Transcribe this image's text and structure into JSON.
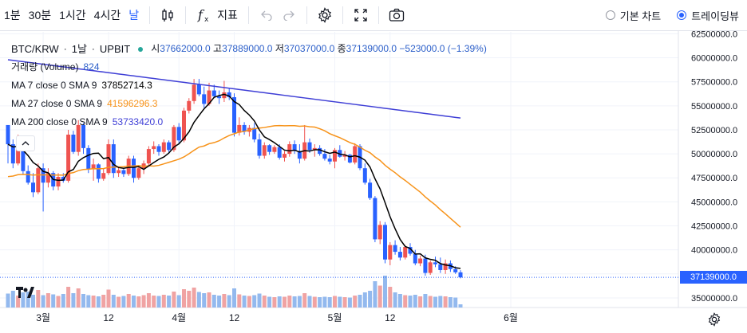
{
  "toolbar": {
    "intervals": [
      "1분",
      "30분",
      "1시간",
      "4시간",
      "날"
    ],
    "active_interval": "날",
    "indicator_label": "지표",
    "chart_type_basic": "기본 차트",
    "chart_type_tv": "트레이딩뷰",
    "selected_chart_type": "트레이딩뷰"
  },
  "legend": {
    "symbol": "BTC/KRW",
    "interval": "1날",
    "exchange": "UPBIT",
    "open_label": "시",
    "open": "37662000.0",
    "high_label": "고",
    "high": "37889000.0",
    "low_label": "저",
    "low": "37037000.0",
    "close_label": "종",
    "close": "37139000.0",
    "change": "−523000.0 (−1.39%)",
    "volume_label": "거래량 (Volume)",
    "volume_value": "824",
    "ma7_label": "MA 7 close 0 SMA 9",
    "ma7_value": "37852714.3",
    "ma27_label": "MA 27 close 0 SMA 9",
    "ma27_value": "41596296.3",
    "ma200_label": "MA 200 close 0 SMA 9",
    "ma200_value": "53733420.0"
  },
  "colors": {
    "up": "#ef5350",
    "down": "#2962ff",
    "ma7": "#000000",
    "ma27": "#f7931a",
    "ma200": "#3f3fd6",
    "vol_up": "#f0a3a3",
    "vol_down": "#93b9ee",
    "accent": "#2962ff"
  },
  "price_tag": "37139000.0",
  "chart_data": {
    "type": "candlestick",
    "y_ticks": [
      "62500000.0",
      "60000000.0",
      "57500000.0",
      "55000000.0",
      "52500000.0",
      "50000000.0",
      "47500000.0",
      "45000000.0",
      "42500000.0",
      "40000000.0",
      "37500000.0",
      "35000000.0"
    ],
    "y_tick_values": [
      62500000,
      60000000,
      57500000,
      55000000,
      52500000,
      50000000,
      47500000,
      45000000,
      42500000,
      40000000,
      37500000,
      35000000
    ],
    "x_ticks": [
      "3월",
      "12",
      "4월",
      "12",
      "5월",
      "12",
      "6월"
    ],
    "x_tick_days": [
      7,
      20,
      34,
      45,
      65,
      76,
      100
    ],
    "ylim": [
      34000000,
      62700000
    ],
    "days": [
      [
        53.0,
        53.0,
        49.0,
        51.0
      ],
      [
        51.0,
        51.5,
        48.5,
        49.0
      ],
      [
        49.0,
        52.0,
        48.8,
        51.5
      ],
      [
        51.5,
        51.6,
        47.8,
        48.2
      ],
      [
        48.2,
        48.8,
        46.8,
        47.0
      ],
      [
        47.0,
        48.0,
        45.5,
        46.0
      ],
      [
        46.0,
        49.0,
        45.8,
        48.5
      ],
      [
        48.5,
        49.0,
        44.0,
        47.0
      ],
      [
        47.0,
        48.5,
        46.5,
        48.0
      ],
      [
        48.0,
        48.2,
        46.2,
        46.6
      ],
      [
        46.6,
        48.0,
        46.2,
        47.6
      ],
      [
        47.6,
        48.0,
        47.0,
        47.2
      ],
      [
        47.2,
        52.5,
        47.0,
        52.0
      ],
      [
        52.0,
        52.4,
        50.0,
        50.2
      ],
      [
        50.2,
        53.5,
        49.8,
        53.0
      ],
      [
        53.0,
        53.2,
        50.0,
        50.6
      ],
      [
        50.6,
        50.9,
        48.0,
        48.4
      ],
      [
        48.4,
        49.5,
        47.2,
        48.9
      ],
      [
        48.9,
        49.0,
        47.0,
        47.4
      ],
      [
        47.4,
        48.5,
        47.2,
        48.0
      ],
      [
        48.0,
        51.5,
        47.8,
        51.0
      ],
      [
        51.0,
        51.5,
        47.5,
        48.0
      ],
      [
        48.0,
        48.6,
        47.6,
        48.3
      ],
      [
        48.3,
        48.5,
        47.6,
        47.9
      ],
      [
        47.9,
        49.8,
        47.7,
        49.5
      ],
      [
        49.5,
        49.8,
        47.0,
        47.5
      ],
      [
        47.5,
        48.8,
        47.3,
        48.5
      ],
      [
        48.5,
        49.3,
        47.9,
        49.0
      ],
      [
        49.0,
        50.8,
        48.8,
        50.5
      ],
      [
        50.5,
        51.3,
        50.0,
        50.8
      ],
      [
        50.8,
        51.0,
        49.8,
        50.2
      ],
      [
        50.2,
        51.5,
        50.0,
        51.2
      ],
      [
        51.2,
        51.4,
        50.1,
        50.4
      ],
      [
        50.4,
        53.0,
        50.2,
        52.8
      ],
      [
        52.8,
        53.2,
        51.0,
        51.4
      ],
      [
        51.4,
        54.8,
        51.2,
        54.5
      ],
      [
        54.5,
        55.8,
        54.2,
        55.5
      ],
      [
        55.5,
        57.8,
        55.2,
        57.2
      ],
      [
        57.2,
        57.8,
        56.0,
        56.2
      ],
      [
        56.2,
        57.0,
        54.8,
        55.2
      ],
      [
        55.2,
        57.4,
        55.0,
        56.6
      ],
      [
        56.6,
        57.2,
        55.8,
        56.0
      ],
      [
        56.0,
        56.6,
        55.2,
        55.8
      ],
      [
        55.8,
        57.6,
        55.4,
        56.4
      ],
      [
        56.4,
        56.8,
        55.6,
        55.9
      ],
      [
        55.9,
        56.3,
        51.8,
        52.2
      ],
      [
        52.2,
        53.8,
        51.9,
        53.0
      ],
      [
        53.0,
        53.3,
        52.0,
        52.3
      ],
      [
        52.3,
        53.0,
        51.8,
        52.7
      ],
      [
        52.7,
        53.2,
        51.2,
        51.5
      ],
      [
        51.5,
        52.1,
        49.5,
        49.8
      ],
      [
        49.8,
        51.2,
        49.5,
        50.9
      ],
      [
        50.9,
        51.0,
        49.9,
        50.2
      ],
      [
        50.2,
        50.9,
        50.0,
        50.7
      ],
      [
        50.7,
        51.0,
        49.4,
        49.6
      ],
      [
        49.6,
        50.3,
        49.2,
        50.0
      ],
      [
        50.0,
        51.3,
        49.7,
        51.0
      ],
      [
        51.0,
        51.4,
        50.0,
        50.3
      ],
      [
        50.3,
        51.0,
        49.0,
        49.5
      ],
      [
        49.5,
        53.0,
        49.3,
        51.2
      ],
      [
        51.2,
        51.6,
        50.1,
        50.4
      ],
      [
        50.4,
        51.0,
        49.7,
        50.6
      ],
      [
        50.6,
        50.9,
        49.8,
        50.0
      ],
      [
        50.0,
        50.5,
        49.3,
        49.5
      ],
      [
        49.5,
        49.9,
        48.9,
        49.2
      ],
      [
        49.2,
        50.6,
        48.5,
        50.4
      ],
      [
        50.4,
        50.9,
        49.6,
        49.7
      ],
      [
        49.7,
        50.3,
        49.3,
        49.9
      ],
      [
        49.9,
        50.0,
        49.0,
        49.1
      ],
      [
        49.1,
        51.1,
        48.9,
        50.8
      ],
      [
        50.8,
        51.0,
        48.3,
        48.5
      ],
      [
        48.5,
        49.0,
        46.8,
        47.0
      ],
      [
        47.0,
        47.4,
        45.2,
        45.4
      ],
      [
        45.4,
        45.6,
        40.8,
        41.1
      ],
      [
        41.1,
        43.0,
        40.6,
        42.6
      ],
      [
        42.6,
        42.9,
        38.6,
        39.0
      ],
      [
        39.0,
        40.8,
        38.4,
        40.5
      ],
      [
        40.5,
        41.0,
        39.5,
        39.8
      ],
      [
        39.8,
        40.3,
        38.9,
        39.2
      ],
      [
        39.2,
        40.5,
        39.0,
        40.3
      ],
      [
        40.3,
        40.7,
        39.4,
        39.6
      ],
      [
        39.6,
        40.0,
        38.4,
        38.6
      ],
      [
        38.6,
        39.4,
        38.3,
        39.1
      ],
      [
        39.1,
        39.5,
        37.3,
        37.6
      ],
      [
        37.6,
        38.9,
        37.4,
        38.7
      ],
      [
        38.7,
        39.3,
        38.2,
        38.5
      ],
      [
        38.5,
        39.2,
        37.6,
        37.9
      ],
      [
        37.9,
        39.0,
        37.5,
        38.6
      ],
      [
        38.6,
        38.9,
        37.7,
        38.0
      ],
      [
        38.0,
        38.3,
        37.5,
        37.66
      ],
      [
        37.662,
        37.889,
        37.037,
        37.139
      ]
    ],
    "volumes": [
      3.5,
      4.2,
      3.0,
      3.8,
      4.0,
      3.2,
      4.4,
      3.1,
      3.6,
      3.3,
      2.9,
      3.4,
      5.2,
      3.6,
      4.8,
      3.4,
      3.1,
      3.0,
      2.8,
      3.2,
      4.5,
      3.2,
      2.7,
      2.9,
      3.4,
      3.0,
      2.8,
      3.1,
      3.6,
      3.0,
      2.9,
      3.2,
      3.0,
      4.0,
      3.1,
      4.6,
      4.2,
      5.0,
      3.9,
      3.6,
      3.8,
      3.2,
      3.0,
      3.4,
      3.1,
      4.8,
      3.3,
      3.0,
      2.9,
      3.1,
      3.5,
      3.0,
      2.7,
      2.6,
      2.8,
      2.7,
      3.0,
      2.8,
      2.9,
      3.6,
      2.9,
      2.7,
      2.6,
      2.7,
      2.6,
      2.9,
      2.7,
      2.6,
      2.5,
      3.0,
      3.2,
      3.8,
      4.2,
      6.6,
      5.5,
      8.0,
      5.2,
      3.8,
      3.4,
      3.1,
      3.0,
      3.2,
      2.8,
      3.4,
      2.9,
      2.7,
      2.9,
      2.8,
      2.6,
      2.5,
      0.8
    ]
  }
}
